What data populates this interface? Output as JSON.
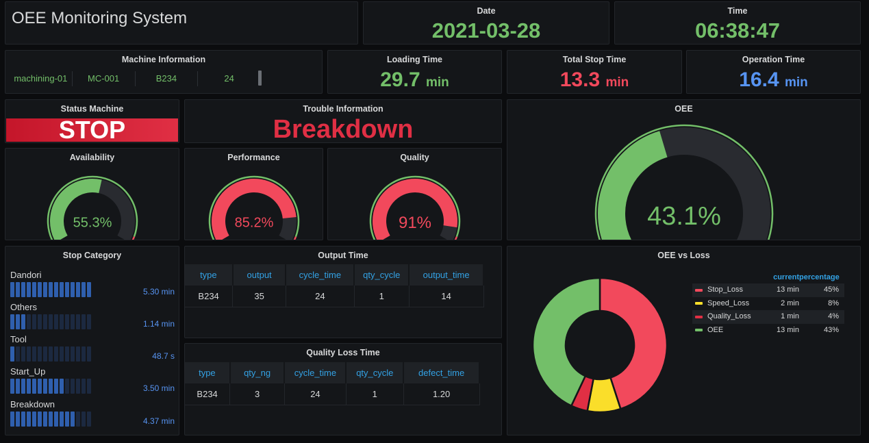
{
  "header": {
    "title": "OEE Monitoring System"
  },
  "date": {
    "label": "Date",
    "value": "2021-03-28"
  },
  "time": {
    "label": "Time",
    "value": "06:38:47"
  },
  "machine": {
    "title": "Machine Information",
    "cells": [
      "machining-01",
      "MC-001",
      "B234",
      "24"
    ]
  },
  "loading_time": {
    "label": "Loading Time",
    "value": "29.7",
    "unit": "min"
  },
  "total_stop_time": {
    "label": "Total Stop Time",
    "value": "13.3",
    "unit": "min"
  },
  "operation_time": {
    "label": "Operation Time",
    "value": "16.4",
    "unit": "min"
  },
  "status_machine": {
    "label": "Status Machine",
    "value": "STOP"
  },
  "trouble": {
    "label": "Trouble Information",
    "value": "Breakdown"
  },
  "availability": {
    "label": "Availability",
    "display": "55.3%",
    "value": 55.3
  },
  "performance": {
    "label": "Performance",
    "display": "85.2%",
    "value": 85.2
  },
  "quality": {
    "label": "Quality",
    "display": "91%",
    "value": 91
  },
  "oee": {
    "label": "OEE",
    "display": "43.1%",
    "value": 43.1
  },
  "stop_category": {
    "title": "Stop Category",
    "items": [
      {
        "label": "Dandori",
        "value": "5.30 min",
        "lit": 15
      },
      {
        "label": "Others",
        "value": "1.14 min",
        "lit": 3
      },
      {
        "label": "Tool",
        "value": "48.7 s",
        "lit": 1
      },
      {
        "label": "Start_Up",
        "value": "3.50 min",
        "lit": 10
      },
      {
        "label": "Breakdown",
        "value": "4.37 min",
        "lit": 12
      }
    ]
  },
  "output_time": {
    "title": "Output Time",
    "columns": [
      "type",
      "output",
      "cycle_time",
      "qty_cycle",
      "output_time"
    ],
    "rows": [
      [
        "B234",
        "35",
        "24",
        "1",
        "14"
      ]
    ]
  },
  "quality_loss_time": {
    "title": "Quality Loss Time",
    "columns": [
      "type",
      "qty_ng",
      "cycle_time",
      "qty_cycle",
      "defect_time"
    ],
    "rows": [
      [
        "B234",
        "3",
        "24",
        "1",
        "1.20"
      ]
    ]
  },
  "oee_vs_loss": {
    "title": "OEE vs Loss",
    "legend_headers": {
      "current": "current",
      "percentage": "percentage"
    },
    "items": [
      {
        "name": "Stop_Loss",
        "current": "13 min",
        "percentage": "45%",
        "color": "#f2495c",
        "value": 45
      },
      {
        "name": "Speed_Loss",
        "current": "2 min",
        "percentage": "8%",
        "color": "#fade2a",
        "value": 8
      },
      {
        "name": "Quality_Loss",
        "current": "1 min",
        "percentage": "4%",
        "color": "#e02f44",
        "value": 4
      },
      {
        "name": "OEE",
        "current": "13 min",
        "percentage": "43%",
        "color": "#73bf69",
        "value": 43
      }
    ]
  },
  "colors": {
    "green": "#73bf69",
    "red": "#f2495c",
    "blue": "#5794f2",
    "bar_blue": "#2f5fae",
    "status_red": "#c4162a"
  }
}
